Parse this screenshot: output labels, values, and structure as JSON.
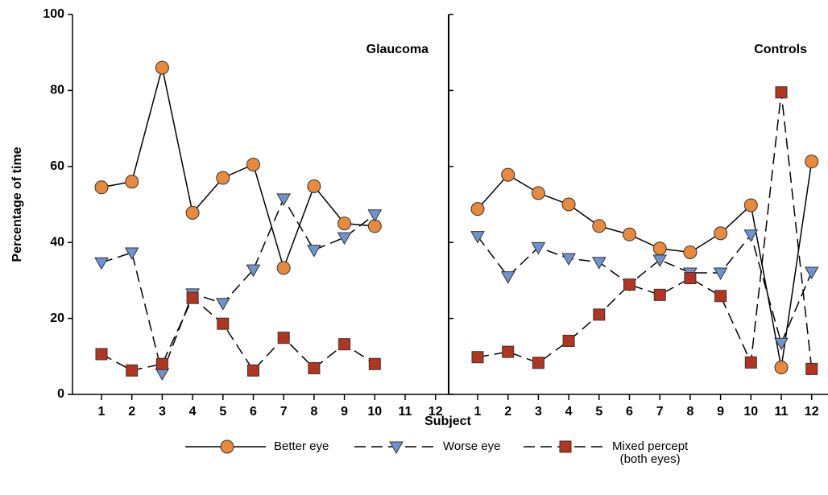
{
  "chart_data": {
    "type": "line",
    "ylabel": "Percentage of time",
    "xlabel": "Subject",
    "ylim": [
      0,
      100
    ],
    "yticks": [
      0,
      20,
      40,
      60,
      80,
      100
    ],
    "series": [
      {
        "name": "Better eye",
        "color": "#e8893b",
        "marker": "circle",
        "dashed": false
      },
      {
        "name": "Worse eye",
        "color": "#6e93d0",
        "marker": "triangle-down",
        "dashed": true
      },
      {
        "name": "Mixed percept\n(both eyes)",
        "color": "#b33520",
        "marker": "square",
        "dashed": true
      }
    ],
    "panels": [
      {
        "title": "Glaucoma",
        "categories": [
          "1",
          "2",
          "3",
          "4",
          "5",
          "6",
          "7",
          "8",
          "9",
          "10",
          "11",
          "12"
        ],
        "values": [
          [
            54.5,
            56,
            86,
            47.8,
            57,
            60.5,
            33.3,
            54.8,
            45,
            44.3,
            null,
            null
          ],
          [
            34.7,
            37.3,
            5.5,
            26.5,
            24,
            32.8,
            51.5,
            38,
            41.3,
            47.3,
            null,
            null
          ],
          [
            10.6,
            6.3,
            8,
            25.4,
            18.6,
            6.3,
            14.9,
            6.9,
            13.2,
            8,
            null,
            null
          ]
        ]
      },
      {
        "title": "Controls",
        "categories": [
          "1",
          "2",
          "3",
          "4",
          "5",
          "6",
          "7",
          "8",
          "9",
          "10",
          "11",
          "12"
        ],
        "values": [
          [
            48.8,
            57.8,
            53,
            50,
            44.3,
            42.1,
            38.4,
            37.4,
            42.4,
            49.8,
            7.1,
            61.3
          ],
          [
            41.6,
            31,
            38.7,
            35.8,
            34.8,
            29,
            35.4,
            32,
            32,
            42,
            13.5,
            32.2
          ],
          [
            9.8,
            11.2,
            8.3,
            14.1,
            21,
            28.9,
            26.2,
            30.6,
            25.9,
            8.4,
            79.5,
            6.7
          ]
        ]
      }
    ]
  }
}
